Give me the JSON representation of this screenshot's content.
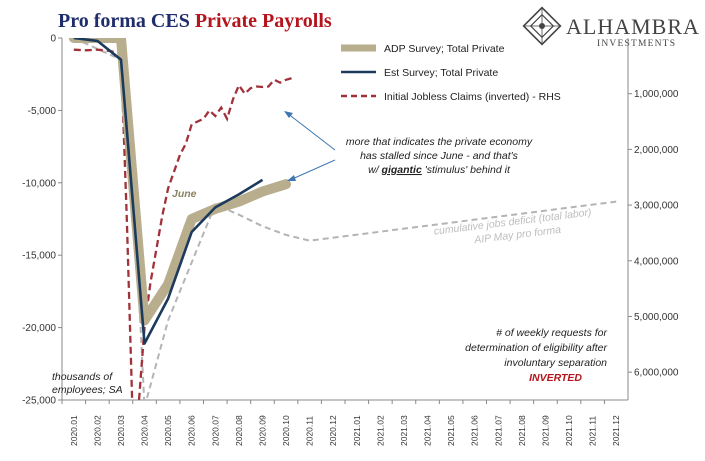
{
  "header": {
    "title_part1": "Pro forma CES ",
    "title_part2": "Private Payrolls",
    "brand_name": "ALHAMBRA",
    "brand_sub": "INVESTMENTS"
  },
  "colors": {
    "title_navy": "#1f2d6b",
    "title_red": "#b5141c",
    "adp": "#b8ae8e",
    "est": "#1c3a5c",
    "claims": "#a1323a",
    "cumulative": "#b4b4b4",
    "arrow": "#3f77b0"
  },
  "annotations": {
    "june": "June",
    "stalled_line1": "more that indicates the private economy",
    "stalled_line2": "has stalled since June - and that's",
    "stalled_line3_pre": "w/ ",
    "stalled_line3_em": "gigantic",
    "stalled_line3_post": " 'stimulus' behind it",
    "cumulative_line1": "cumulative jobs deficit (total labor)",
    "cumulative_line2": "AIP May pro forma",
    "units_line1": "thousands of",
    "units_line2": "employees; SA",
    "rhs_note_line1": "# of weekly requests for",
    "rhs_note_line2": "determination of eligibility after",
    "rhs_note_line3": "involuntary separation",
    "rhs_note_line4": "INVERTED"
  },
  "chart_data": {
    "type": "line",
    "title": "Pro forma CES Private Payrolls",
    "ylabel": "thousands of employees; SA",
    "ylim": [
      -25000,
      0
    ],
    "y_ticks": [
      0,
      -5000,
      -10000,
      -15000,
      -20000,
      -25000
    ],
    "y_tick_labels": [
      "0",
      "-5,000",
      "-10,000",
      "-15,000",
      "-20,000",
      "-25,000"
    ],
    "y2_label": "Initial Jobless Claims (inverted)",
    "y2_inverted": true,
    "y2lim": [
      0,
      6500000
    ],
    "y2_ticks": [
      1000000,
      2000000,
      3000000,
      4000000,
      5000000,
      6000000
    ],
    "y2_tick_labels": [
      "1,000,000",
      "2,000,000",
      "3,000,000",
      "4,000,000",
      "5,000,000",
      "6,000,000"
    ],
    "x_categories": [
      "2020.01",
      "2020.02",
      "2020.03",
      "2020.04",
      "2020.05",
      "2020.06",
      "2020.07",
      "2020.08",
      "2020.09",
      "2020.10",
      "2020.11",
      "2020.12",
      "2021.01",
      "2021.02",
      "2021.03",
      "2021.04",
      "2021.05",
      "2021.06",
      "2021.07",
      "2021.08",
      "2021.09",
      "2021.10",
      "2021.11",
      "2021.12"
    ],
    "legend_position": "top-right",
    "series": [
      {
        "name": "ADP Survey; Total Private",
        "axis": "left",
        "style": "thick",
        "x": [
          "2020.01",
          "2020.02",
          "2020.03",
          "2020.04",
          "2020.05",
          "2020.06",
          "2020.07",
          "2020.08",
          "2020.09",
          "2020.10"
        ],
        "values": [
          0,
          0,
          0,
          -19500,
          -17000,
          -12500,
          -11800,
          -11300,
          -10600,
          -10100
        ]
      },
      {
        "name": "Est Survey; Total Private",
        "axis": "left",
        "style": "solid",
        "x": [
          "2020.01",
          "2020.02",
          "2020.03",
          "2020.04",
          "2020.05",
          "2020.06",
          "2020.07",
          "2020.08",
          "2020.09"
        ],
        "values": [
          0,
          -200,
          -1500,
          -21100,
          -18000,
          -13400,
          -11700,
          -10800,
          -9800
        ]
      },
      {
        "name": "Initial Jobless Claims (inverted) - RHS",
        "axis": "right",
        "style": "dashed",
        "x_index": [
          0,
          0.5,
          1,
          1.5,
          2,
          2.25,
          2.5,
          2.75,
          3,
          3.25,
          3.5,
          3.75,
          4,
          4.25,
          4.5,
          4.75,
          5,
          5.25,
          5.5,
          5.75,
          6,
          6.25,
          6.5,
          6.75,
          7,
          7.25,
          7.5,
          7.75,
          8,
          8.25,
          8.5,
          8.75,
          9,
          9.25
        ],
        "values": [
          210000,
          220000,
          210000,
          230000,
          280000,
          3300000,
          6900000,
          6600000,
          5200000,
          4400000,
          3800000,
          3200000,
          2700000,
          2400000,
          2100000,
          1900000,
          1550000,
          1500000,
          1450000,
          1300000,
          1400000,
          1250000,
          1450000,
          1100000,
          850000,
          1000000,
          900000,
          870000,
          880000,
          870000,
          750000,
          800000,
          750000,
          720000
        ]
      },
      {
        "name": "cumulative jobs deficit (total labor) AIP May pro forma",
        "axis": "left",
        "style": "dashed-light",
        "x_index": [
          0,
          2,
          2.5,
          3,
          4,
          5,
          6,
          7,
          8,
          9,
          10,
          23
        ],
        "values": [
          0,
          -1500,
          -9000,
          -25500,
          -19500,
          -15500,
          -11500,
          -12200,
          -13000,
          -13600,
          -14000,
          -11300
        ]
      }
    ]
  }
}
